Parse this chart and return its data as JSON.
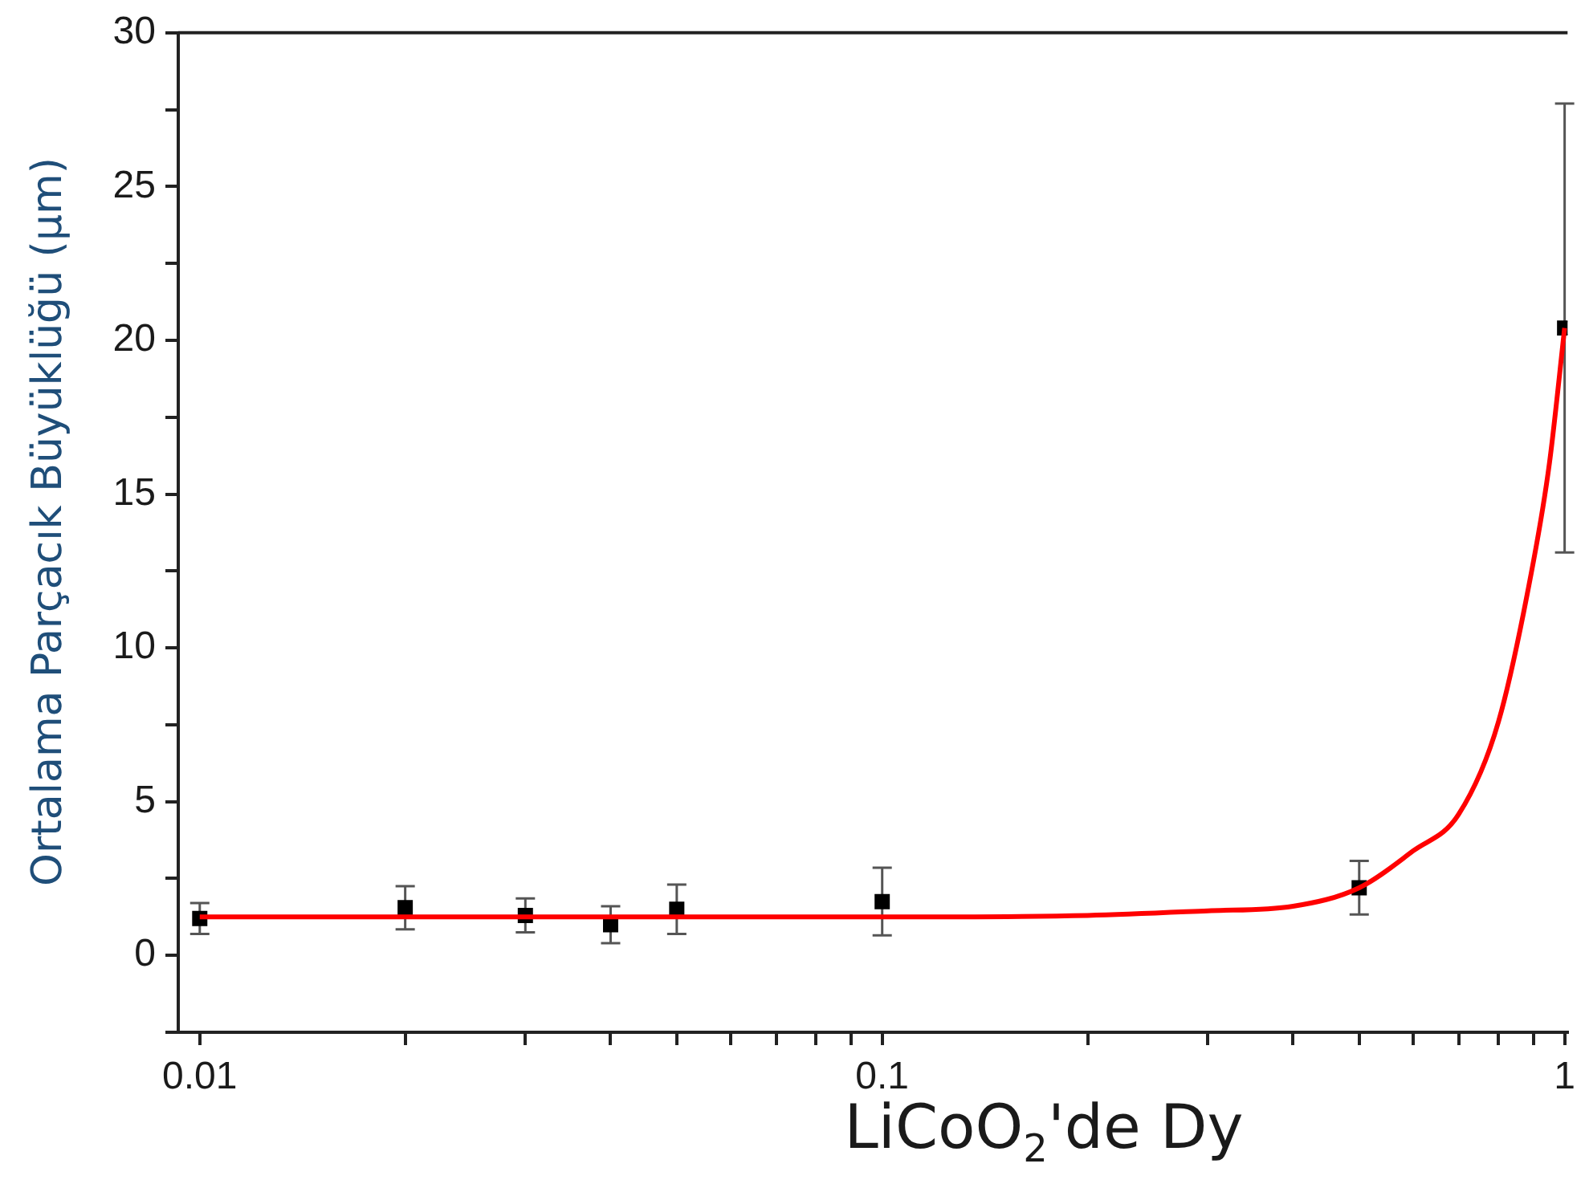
{
  "chart_data": {
    "type": "scatter",
    "xlabel": "LiCoO$_{2}$'de Dy",
    "ylabel": "Ortalama Parçacık Büyüklüğü (µm)",
    "log": "x",
    "grid": false,
    "legend": false,
    "marker": "square",
    "xlim": [
      0.0093,
      1.01
    ],
    "ylim": [
      -2.5,
      30
    ],
    "xticks": [
      0.01,
      {
        "value": 0.02,
        "label": null
      },
      {
        "value": 0.03,
        "label": null
      },
      {
        "value": 0.04,
        "label": null
      },
      {
        "value": 0.05,
        "label": null
      },
      {
        "value": 0.06,
        "label": null
      },
      {
        "value": 0.07,
        "label": null
      },
      {
        "value": 0.08,
        "label": null
      },
      {
        "value": 0.09,
        "label": null
      },
      0.1,
      {
        "value": 0.2,
        "label": null
      },
      {
        "value": 0.3,
        "label": null
      },
      {
        "value": 0.4,
        "label": null
      },
      {
        "value": 0.5,
        "label": null
      },
      {
        "value": 0.6,
        "label": null
      },
      {
        "value": 0.7,
        "label": null
      },
      {
        "value": 0.8,
        "label": null
      },
      {
        "value": 0.9,
        "label": null
      },
      1
    ],
    "yticks": [
      {
        "value": -2.5,
        "label": null
      },
      0,
      {
        "value": 2.5,
        "label": null
      },
      5,
      {
        "value": 7.5,
        "label": null
      },
      10,
      {
        "value": 12.5,
        "label": null
      },
      15,
      {
        "value": 17.5,
        "label": null
      },
      20,
      {
        "value": 22.5,
        "label": null
      },
      25,
      {
        "value": 27.5,
        "label": null
      },
      30
    ],
    "series": [
      {
        "color": "#000000",
        "x": [
          0.01,
          0.02,
          0.03,
          0.04,
          0.05,
          0.1,
          0.5,
          1
        ],
        "values": [
          1.2,
          1.55,
          1.3,
          1.0,
          1.5,
          1.75,
          2.2,
          20.4
        ],
        "errors": [
          0.5,
          0.7,
          0.55,
          0.6,
          0.8,
          1.1,
          0.87,
          7.3
        ]
      },
      {
        "type": "line",
        "color": "#ff0000",
        "marker": "none",
        "x": [
          0.01,
          0.05,
          0.1,
          0.2,
          0.3,
          0.4,
          0.5,
          0.6,
          0.7,
          0.8,
          0.9,
          0.95,
          1
        ],
        "values": [
          1.25,
          1.25,
          1.25,
          1.3,
          1.45,
          1.6,
          2.2,
          3.4,
          4.6,
          7.6,
          12.8,
          16,
          20.4
        ]
      }
    ]
  }
}
